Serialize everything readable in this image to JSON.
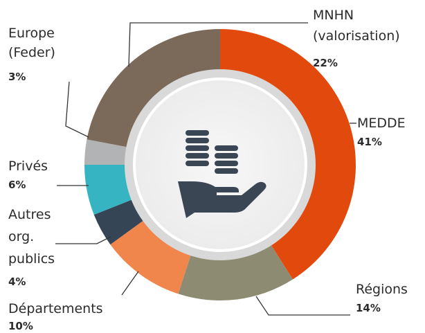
{
  "chart_data": {
    "type": "donut",
    "categories": [
      [
        "MEDDE"
      ],
      [
        "Régions"
      ],
      [
        "Départements"
      ],
      [
        "Autres",
        "org.",
        "publics"
      ],
      [
        "Privés"
      ],
      [
        "Europe",
        "(Feder)"
      ],
      [
        "MNHN",
        "(valorisation)"
      ]
    ],
    "values": [
      41,
      14,
      10,
      4,
      6,
      3,
      22
    ],
    "value_labels": [
      "41%",
      "14%",
      "10%",
      "4%",
      "6%",
      "3%",
      "22%"
    ],
    "colors": [
      "#e2490d",
      "#8d8b72",
      "#f0864c",
      "#364556",
      "#36b4c2",
      "#b2b3b5",
      "#7b6959"
    ]
  }
}
